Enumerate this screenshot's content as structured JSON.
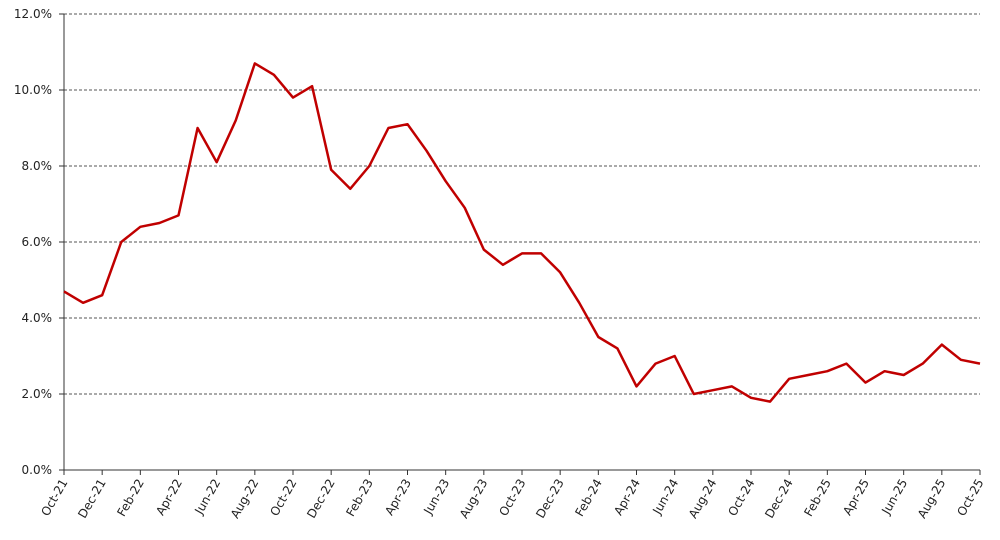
{
  "chart_data": {
    "type": "line",
    "categories": [
      "Oct-21",
      null,
      "Dec-21",
      null,
      "Feb-22",
      null,
      "Apr-22",
      null,
      "Jun-22",
      null,
      "Aug-22",
      null,
      "Oct-22",
      null,
      "Dec-22",
      null,
      "Feb-23",
      null,
      "Apr-23",
      null,
      "Jun-23",
      null,
      "Aug-23",
      null,
      "Oct-23",
      null,
      "Dec-23",
      null,
      "Feb-24",
      null,
      "Apr-24",
      null,
      "Jun-24",
      null,
      "Aug-24",
      null,
      "Oct-24",
      null,
      "Dec-24",
      null,
      "Feb-25",
      null,
      "Apr-25",
      null,
      "Jun-25",
      null,
      "Aug-25",
      null,
      "Oct-25"
    ],
    "values": [
      4.7,
      4.4,
      4.6,
      6.0,
      6.4,
      6.5,
      6.7,
      9.0,
      8.1,
      9.2,
      10.7,
      10.4,
      9.8,
      10.1,
      7.9,
      7.4,
      8.0,
      9.0,
      9.1,
      8.4,
      7.6,
      6.9,
      5.8,
      5.4,
      5.7,
      5.7,
      5.2,
      4.4,
      3.5,
      3.2,
      2.2,
      2.8,
      3.0,
      2.0,
      2.1,
      2.2,
      1.9,
      1.8,
      2.4,
      2.5,
      2.6,
      2.8,
      2.3,
      2.6,
      2.5,
      2.8,
      3.3,
      2.9,
      2.8
    ],
    "color": "#c00000",
    "ylim": [
      0,
      12
    ],
    "yticks": [
      {
        "value": 0,
        "label": "0.0%"
      },
      {
        "value": 2,
        "label": "2.0%"
      },
      {
        "value": 4,
        "label": "4.0%"
      },
      {
        "value": 6,
        "label": "6.0%"
      },
      {
        "value": 8,
        "label": "8.0%"
      },
      {
        "value": 10,
        "label": "10.0%"
      },
      {
        "value": 12,
        "label": "12.0%"
      }
    ],
    "grid": true
  }
}
